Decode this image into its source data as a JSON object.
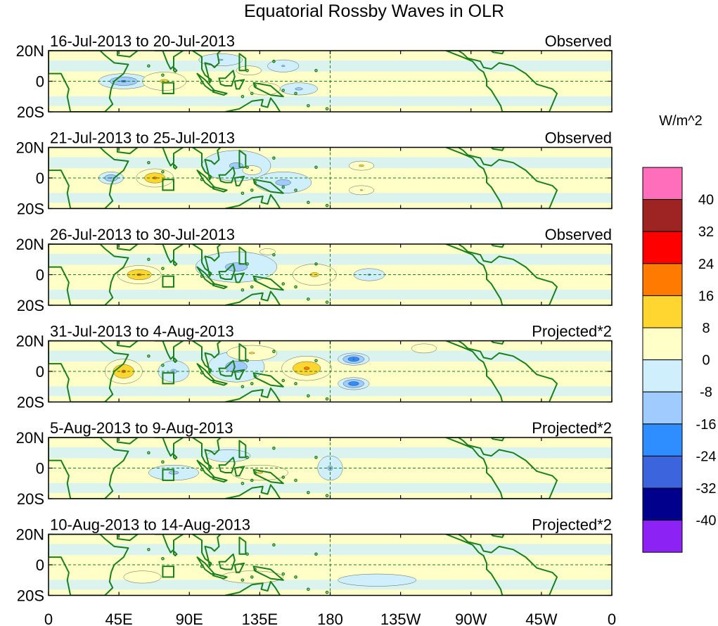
{
  "title": "Equatorial Rossby Waves in OLR",
  "lat_labels": [
    "20N",
    "0",
    "20S"
  ],
  "lon_labels": [
    "0",
    "45E",
    "90E",
    "135E",
    "180",
    "135W",
    "90W",
    "45W",
    "0"
  ],
  "panels": [
    {
      "dates": "16-Jul-2013 to 20-Jul-2013",
      "kind": "Observed"
    },
    {
      "dates": "21-Jul-2013 to 25-Jul-2013",
      "kind": "Observed"
    },
    {
      "dates": "26-Jul-2013 to 30-Jul-2013",
      "kind": "Observed"
    },
    {
      "dates": "31-Jul-2013 to 4-Aug-2013",
      "kind": "Projected*2"
    },
    {
      "dates": "5-Aug-2013 to 9-Aug-2013",
      "kind": "Projected*2"
    },
    {
      "dates": "10-Aug-2013 to 14-Aug-2013",
      "kind": "Projected*2"
    }
  ],
  "colorbar": {
    "unit": "W/m^2",
    "levels": [
      "40",
      "32",
      "24",
      "16",
      "8",
      "0",
      "-8",
      "-16",
      "-24",
      "-32",
      "-40"
    ],
    "colors": [
      "#ff6ebb",
      "#9e2323",
      "#ff0000",
      "#ff7a00",
      "#ffd530",
      "#ffffc8",
      "#cfeffc",
      "#9fcbff",
      "#2f8eff",
      "#3c64dc",
      "#00008c",
      "#8c22f4"
    ]
  },
  "anomalies": [
    [
      {
        "lon": 48,
        "lat": 0,
        "rlon": 16,
        "rlat": 5,
        "v": -18
      },
      {
        "lon": 74,
        "lat": 0,
        "rlon": 14,
        "rlat": 6,
        "v": 10
      },
      {
        "lon": 128,
        "lat": 7,
        "rlon": 8,
        "rlat": 3,
        "v": 6
      },
      {
        "lon": 138,
        "lat": -5,
        "rlon": 10,
        "rlat": 4,
        "v": 7
      },
      {
        "lon": 110,
        "lat": 14,
        "rlon": 14,
        "rlat": 4,
        "v": -9
      },
      {
        "lon": 150,
        "lat": 10,
        "rlon": 10,
        "rlat": 4,
        "v": -9
      },
      {
        "lon": 160,
        "lat": -5,
        "rlon": 12,
        "rlat": 4,
        "v": -10
      }
    ],
    [
      {
        "lon": 40,
        "lat": 0,
        "rlon": 8,
        "rlat": 4,
        "v": -17
      },
      {
        "lon": 68,
        "lat": 0,
        "rlon": 12,
        "rlat": 6,
        "v": 18
      },
      {
        "lon": 120,
        "lat": 8,
        "rlon": 22,
        "rlat": 10,
        "v": -10
      },
      {
        "lon": 150,
        "lat": -3,
        "rlon": 18,
        "rlat": 7,
        "v": -11
      },
      {
        "lon": 200,
        "lat": 8,
        "rlon": 8,
        "rlat": 3,
        "v": 10
      },
      {
        "lon": 200,
        "lat": -8,
        "rlon": 8,
        "rlat": 3,
        "v": 9
      },
      {
        "lon": 130,
        "lat": 5,
        "rlon": 6,
        "rlat": 3,
        "v": 9
      }
    ],
    [
      {
        "lon": 58,
        "lat": 0,
        "rlon": 14,
        "rlat": 6,
        "v": 18
      },
      {
        "lon": 120,
        "lat": 5,
        "rlon": 26,
        "rlat": 10,
        "v": -11
      },
      {
        "lon": 170,
        "lat": 0,
        "rlon": 14,
        "rlat": 7,
        "v": 10
      },
      {
        "lon": 205,
        "lat": 0,
        "rlon": 10,
        "rlat": 4,
        "v": -9
      },
      {
        "lon": 140,
        "lat": 15,
        "rlon": 5,
        "rlat": 2,
        "v": 8
      }
    ],
    [
      {
        "lon": 48,
        "lat": 0,
        "rlon": 12,
        "rlat": 8,
        "v": 18
      },
      {
        "lon": 80,
        "lat": 0,
        "rlon": 10,
        "rlat": 7,
        "v": -10
      },
      {
        "lon": 120,
        "lat": 3,
        "rlon": 18,
        "rlat": 10,
        "v": -13
      },
      {
        "lon": 165,
        "lat": 2,
        "rlon": 16,
        "rlat": 8,
        "v": 18
      },
      {
        "lon": 195,
        "lat": 8,
        "rlon": 10,
        "rlat": 4,
        "v": -25
      },
      {
        "lon": 195,
        "lat": -8,
        "rlon": 10,
        "rlat": 4,
        "v": -24
      },
      {
        "lon": 130,
        "lat": 12,
        "rlon": 16,
        "rlat": 5,
        "v": 9
      },
      {
        "lon": 240,
        "lat": 15,
        "rlon": 8,
        "rlat": 3,
        "v": 7
      }
    ],
    [
      {
        "lon": 80,
        "lat": -3,
        "rlon": 16,
        "rlat": 5,
        "v": -10
      },
      {
        "lon": 135,
        "lat": -3,
        "rlon": 18,
        "rlat": 5,
        "v": 9
      },
      {
        "lon": 180,
        "lat": 0,
        "rlon": 8,
        "rlat": 8,
        "v": -10
      },
      {
        "lon": 115,
        "lat": 8,
        "rlon": 14,
        "rlat": 4,
        "v": -8
      }
    ],
    [
      {
        "lon": 60,
        "lat": -8,
        "rlon": 12,
        "rlat": 4,
        "v": 6
      },
      {
        "lon": 130,
        "lat": -8,
        "rlon": 20,
        "rlat": 4,
        "v": 5
      },
      {
        "lon": 210,
        "lat": -10,
        "rlon": 25,
        "rlat": 4,
        "v": -6
      }
    ]
  ]
}
